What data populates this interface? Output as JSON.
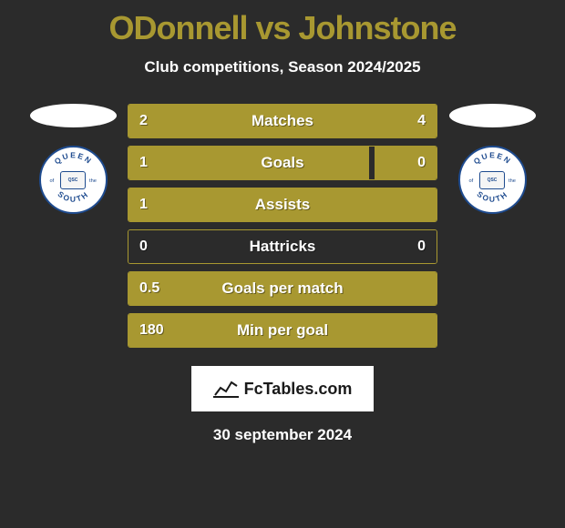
{
  "title": "ODonnell vs Johnstone",
  "subtitle": "Club competitions, Season 2024/2025",
  "colors": {
    "background": "#2b2b2b",
    "accent": "#a89831",
    "title_color": "#a89831",
    "text_color": "#ffffff",
    "badge_border": "#1e4b8f"
  },
  "badge_text": {
    "top": "QUEEN",
    "right": "the",
    "left": "of",
    "bottom": "SOUTH",
    "center": "QSC"
  },
  "stats": [
    {
      "label": "Matches",
      "left_value": "2",
      "right_value": "4",
      "left_pct": 33,
      "right_pct": 67,
      "left_color": "#a89831",
      "right_color": "#a89831",
      "full": true
    },
    {
      "label": "Goals",
      "left_value": "1",
      "right_value": "0",
      "left_pct": 78,
      "right_pct": 20,
      "left_color": "#a89831",
      "right_color": "#a89831",
      "full": false
    },
    {
      "label": "Assists",
      "left_value": "1",
      "right_value": "",
      "left_pct": 100,
      "right_pct": 0,
      "left_color": "#a89831",
      "right_color": "#a89831",
      "full": true
    },
    {
      "label": "Hattricks",
      "left_value": "0",
      "right_value": "0",
      "left_pct": 0,
      "right_pct": 0,
      "left_color": "#a89831",
      "right_color": "#a89831",
      "full": false
    },
    {
      "label": "Goals per match",
      "left_value": "0.5",
      "right_value": "",
      "left_pct": 100,
      "right_pct": 0,
      "left_color": "#a89831",
      "right_color": "#a89831",
      "full": true
    },
    {
      "label": "Min per goal",
      "left_value": "180",
      "right_value": "",
      "left_pct": 100,
      "right_pct": 0,
      "left_color": "#a89831",
      "right_color": "#a89831",
      "full": true
    }
  ],
  "brand": "FcTables.com",
  "footer_date": "30 september 2024"
}
